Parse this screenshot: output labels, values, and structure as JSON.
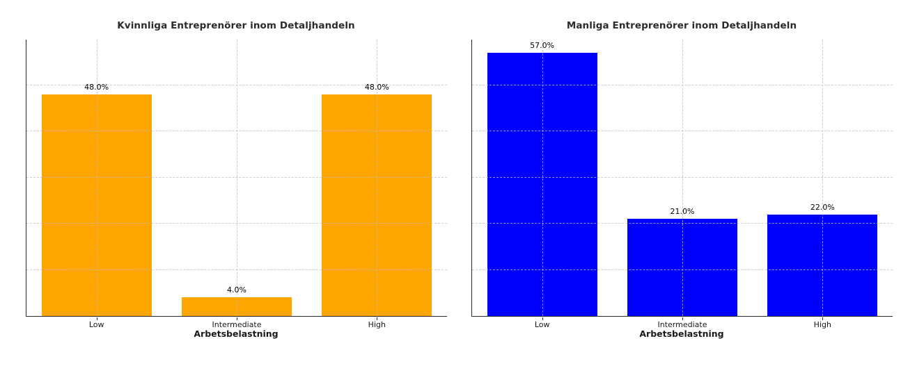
{
  "figure": {
    "background": "#ffffff"
  },
  "style": {
    "grid_color": "#bebebe",
    "spine_color": "#262626",
    "title_color": "#2b2b2b",
    "tick_label_color": "#1a1a1a",
    "value_label_color": "#000000"
  },
  "chart_data": [
    {
      "type": "bar",
      "title": "Kvinnliga Entreprenörer inom Detaljhandeln",
      "categories": [
        "Low",
        "Intermediate",
        "High"
      ],
      "values": [
        48.0,
        4.0,
        48.0
      ],
      "value_labels": [
        "48.0%",
        "4.0%",
        "48.0%"
      ],
      "xlabel": "Arbetsbelastning",
      "ylabel": "",
      "ylim": [
        0,
        59.85
      ],
      "yticks": [
        10,
        20,
        30,
        40,
        50
      ],
      "ytick_labels_visible": false,
      "bar_color": "#FFA500",
      "grid": "dashed, x and y, drawn above bars",
      "legend": "none"
    },
    {
      "type": "bar",
      "title": "Manliga Entreprenörer inom Detaljhandeln",
      "categories": [
        "Low",
        "Intermediate",
        "High"
      ],
      "values": [
        57.0,
        21.0,
        22.0
      ],
      "value_labels": [
        "57.0%",
        "21.0%",
        "22.0%"
      ],
      "xlabel": "Arbetsbelastning",
      "ylabel": "",
      "ylim": [
        0,
        59.85
      ],
      "yticks": [
        10,
        20,
        30,
        40,
        50
      ],
      "ytick_labels_visible": false,
      "bar_color": "#0000FF",
      "grid": "dashed, x and y, drawn above bars",
      "legend": "none"
    }
  ]
}
